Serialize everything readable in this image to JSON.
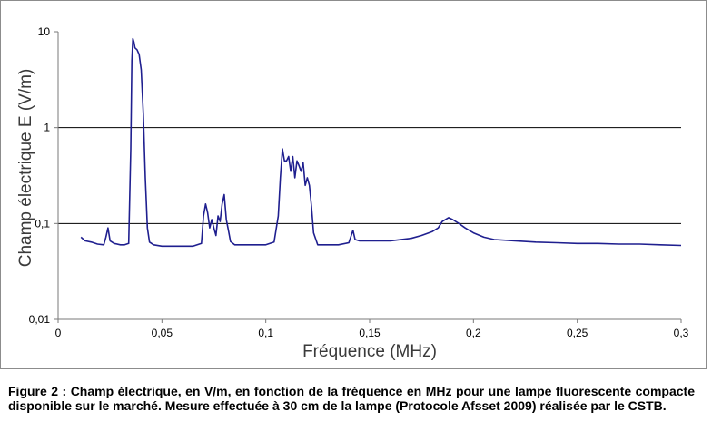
{
  "chart_data": {
    "type": "line",
    "title": "",
    "xlabel": "Fréquence (MHz)",
    "ylabel": "Champ électrique E (V/m)",
    "xlim": [
      0,
      0.3
    ],
    "ylim": [
      0.01,
      10
    ],
    "y_scale": "log",
    "x_ticks": [
      {
        "value": 0,
        "label": "0"
      },
      {
        "value": 0.05,
        "label": "0,05"
      },
      {
        "value": 0.1,
        "label": "0,1"
      },
      {
        "value": 0.15,
        "label": "0,15"
      },
      {
        "value": 0.2,
        "label": "0,2"
      },
      {
        "value": 0.25,
        "label": "0,25"
      },
      {
        "value": 0.3,
        "label": "0,3"
      }
    ],
    "y_ticks": [
      {
        "value": 0.01,
        "label": "0,01"
      },
      {
        "value": 0.1,
        "label": "0,1"
      },
      {
        "value": 1,
        "label": "1"
      },
      {
        "value": 10,
        "label": "10"
      }
    ],
    "grid": {
      "horizontal": true,
      "vertical": false
    },
    "legend": "none",
    "series_color": "#1f1f8f",
    "series": [
      {
        "x": [
          0.011,
          0.013,
          0.016,
          0.019,
          0.022,
          0.023,
          0.024,
          0.025,
          0.027,
          0.03,
          0.032,
          0.034,
          0.035,
          0.0355,
          0.036,
          0.0365,
          0.037,
          0.038,
          0.039,
          0.04,
          0.041,
          0.042,
          0.043,
          0.044,
          0.046,
          0.05,
          0.055,
          0.06,
          0.065,
          0.069,
          0.07,
          0.071,
          0.072,
          0.073,
          0.074,
          0.075,
          0.076,
          0.077,
          0.078,
          0.079,
          0.08,
          0.081,
          0.082,
          0.083,
          0.085,
          0.09,
          0.095,
          0.1,
          0.104,
          0.106,
          0.107,
          0.108,
          0.109,
          0.11,
          0.111,
          0.112,
          0.113,
          0.114,
          0.115,
          0.116,
          0.117,
          0.118,
          0.119,
          0.12,
          0.121,
          0.122,
          0.123,
          0.125,
          0.13,
          0.135,
          0.14,
          0.142,
          0.143,
          0.145,
          0.15,
          0.16,
          0.17,
          0.175,
          0.18,
          0.183,
          0.185,
          0.188,
          0.19,
          0.193,
          0.196,
          0.2,
          0.205,
          0.21,
          0.22,
          0.23,
          0.24,
          0.25,
          0.26,
          0.27,
          0.28,
          0.29,
          0.3
        ],
        "y": [
          0.072,
          0.066,
          0.064,
          0.061,
          0.06,
          0.072,
          0.09,
          0.066,
          0.062,
          0.06,
          0.06,
          0.062,
          0.6,
          5.0,
          8.5,
          7.8,
          6.8,
          6.5,
          5.8,
          4.0,
          1.4,
          0.3,
          0.09,
          0.064,
          0.06,
          0.058,
          0.058,
          0.058,
          0.058,
          0.062,
          0.12,
          0.16,
          0.13,
          0.09,
          0.11,
          0.09,
          0.075,
          0.12,
          0.105,
          0.16,
          0.2,
          0.11,
          0.085,
          0.065,
          0.06,
          0.06,
          0.06,
          0.06,
          0.064,
          0.12,
          0.3,
          0.6,
          0.45,
          0.45,
          0.5,
          0.35,
          0.5,
          0.3,
          0.45,
          0.4,
          0.35,
          0.43,
          0.25,
          0.3,
          0.25,
          0.15,
          0.08,
          0.06,
          0.06,
          0.06,
          0.063,
          0.085,
          0.068,
          0.066,
          0.066,
          0.066,
          0.07,
          0.075,
          0.082,
          0.09,
          0.105,
          0.115,
          0.11,
          0.1,
          0.09,
          0.08,
          0.072,
          0.068,
          0.066,
          0.064,
          0.063,
          0.062,
          0.062,
          0.061,
          0.061,
          0.06,
          0.059
        ]
      }
    ]
  },
  "caption": {
    "bold_prefix": "Figure 2 : ",
    "text": "Champ électrique, en V/m, en fonction de la fréquence en MHz pour une lampe fluorescente compacte disponible sur le marché. Mesure effectuée à 30 cm de la lampe (Protocole Afsset 2009) réalisée par le CSTB."
  }
}
